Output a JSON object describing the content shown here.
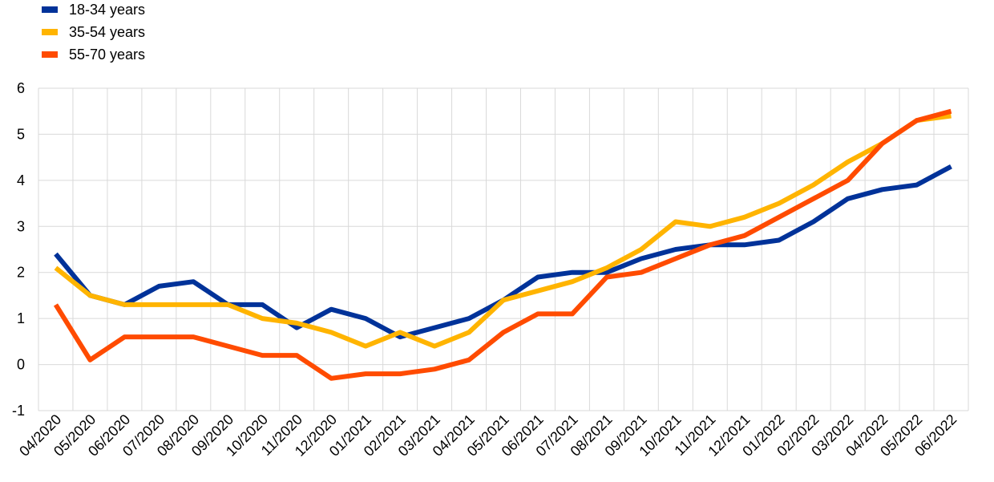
{
  "chart_data": {
    "type": "line",
    "title": "",
    "xlabel": "",
    "ylabel": "",
    "ylim": [
      -1,
      6
    ],
    "yticks": [
      "-1",
      "0",
      "1",
      "2",
      "3",
      "4",
      "5",
      "6"
    ],
    "grid": true,
    "legend_position": "top-left",
    "categories": [
      "04/2020",
      "05/2020",
      "06/2020",
      "07/2020",
      "08/2020",
      "09/2020",
      "10/2020",
      "11/2020",
      "12/2020",
      "01/2021",
      "02/2021",
      "03/2021",
      "04/2021",
      "05/2021",
      "06/2021",
      "07/2021",
      "08/2021",
      "09/2021",
      "10/2021",
      "11/2021",
      "12/2021",
      "01/2022",
      "02/2022",
      "03/2022",
      "04/2022",
      "05/2022",
      "06/2022"
    ],
    "series": [
      {
        "name": "18-34 years",
        "color": "#003299",
        "values": [
          2.4,
          1.5,
          1.3,
          1.7,
          1.8,
          1.3,
          1.3,
          0.8,
          1.2,
          1.0,
          0.6,
          0.8,
          1.0,
          1.4,
          1.9,
          2.0,
          2.0,
          2.3,
          2.5,
          2.6,
          2.6,
          2.7,
          3.1,
          3.6,
          3.8,
          3.9,
          4.3
        ]
      },
      {
        "name": "35-54 years",
        "color": "#FFB400",
        "values": [
          2.1,
          1.5,
          1.3,
          1.3,
          1.3,
          1.3,
          1.0,
          0.9,
          0.7,
          0.4,
          0.7,
          0.4,
          0.7,
          1.4,
          1.6,
          1.8,
          2.1,
          2.5,
          3.1,
          3.0,
          3.2,
          3.5,
          3.9,
          4.4,
          4.8,
          5.3,
          5.4
        ]
      },
      {
        "name": "55-70 years",
        "color": "#FF4B00",
        "values": [
          1.3,
          0.1,
          0.6,
          0.6,
          0.6,
          0.4,
          0.2,
          0.2,
          -0.3,
          -0.2,
          -0.2,
          -0.1,
          0.1,
          0.7,
          1.1,
          1.1,
          1.9,
          2.0,
          2.3,
          2.6,
          2.8,
          3.2,
          3.6,
          4.0,
          4.8,
          5.3,
          5.5
        ]
      }
    ]
  }
}
